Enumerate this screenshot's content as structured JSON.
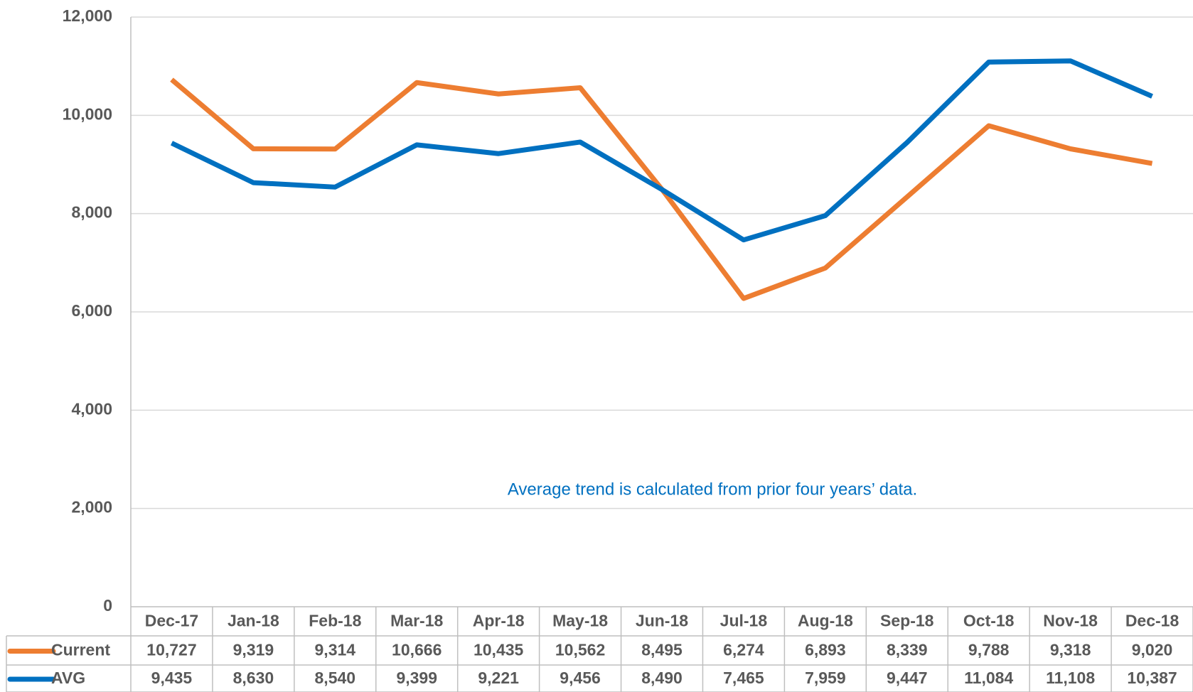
{
  "chart_data": {
    "type": "line",
    "annotation": "Average trend is calculated from prior four years’ data.",
    "categories": [
      "Dec-17",
      "Jan-18",
      "Feb-18",
      "Mar-18",
      "Apr-18",
      "May-18",
      "Jun-18",
      "Jul-18",
      "Aug-18",
      "Sep-18",
      "Oct-18",
      "Nov-18",
      "Dec-18"
    ],
    "series": [
      {
        "name": "Current",
        "color": "#ED7D31",
        "values": [
          10727,
          9319,
          9314,
          10666,
          10435,
          10562,
          8495,
          6274,
          6893,
          8339,
          9788,
          9318,
          9020
        ],
        "value_labels": [
          "10,727",
          "9,319",
          "9,314",
          "10,666",
          "10,435",
          "10,562",
          "8,495",
          "6,274",
          "6,893",
          "8,339",
          "9,788",
          "9,318",
          "9,020"
        ]
      },
      {
        "name": "AVG",
        "color": "#0070C0",
        "values": [
          9435,
          8630,
          8540,
          9399,
          9221,
          9456,
          8490,
          7465,
          7959,
          9447,
          11084,
          11108,
          10387
        ],
        "value_labels": [
          "9,435",
          "8,630",
          "8,540",
          "9,399",
          "9,221",
          "9,456",
          "8,490",
          "7,465",
          "7,959",
          "9,447",
          "11,084",
          "11,108",
          "10,387"
        ]
      }
    ],
    "ylim": [
      0,
      12000
    ],
    "yticks": [
      0,
      {
        "value": 2000,
        "label": "2,000"
      },
      {
        "value": 4000,
        "label": "4,000"
      },
      {
        "value": 6000,
        "label": "6,000"
      },
      {
        "value": 8000,
        "label": "8,000"
      },
      {
        "value": 10000,
        "label": "10,000"
      },
      {
        "value": 12000,
        "label": "12,000"
      }
    ],
    "grid": true
  }
}
